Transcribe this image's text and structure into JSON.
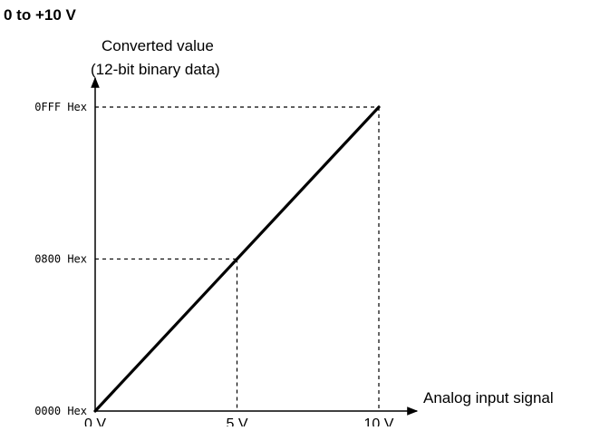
{
  "chart_data": {
    "type": "line",
    "title": "0 to +10 V",
    "ylabel_line1": "Converted value",
    "ylabel_line2": "(12-bit binary data)",
    "xlabel": "Analog input signal",
    "x_unit": "V",
    "xlim": [
      0,
      10
    ],
    "ylim": [
      0,
      4095
    ],
    "x_ticks": [
      {
        "value": 0,
        "label": "0 V"
      },
      {
        "value": 5,
        "label": "5 V"
      },
      {
        "value": 10,
        "label": "10 V"
      }
    ],
    "y_ticks": [
      {
        "value": 0,
        "label": "0000 Hex"
      },
      {
        "value": 2048,
        "label": "0800 Hex"
      },
      {
        "value": 4095,
        "label": "0FFF Hex"
      }
    ],
    "series": [
      {
        "x": [
          0,
          10
        ],
        "y": [
          0,
          4095
        ],
        "color": "#000000"
      }
    ],
    "reference_lines": [
      {
        "x": 5,
        "y": 2048
      },
      {
        "x": 10,
        "y": 4095
      }
    ],
    "grid": false,
    "legend": "none"
  }
}
